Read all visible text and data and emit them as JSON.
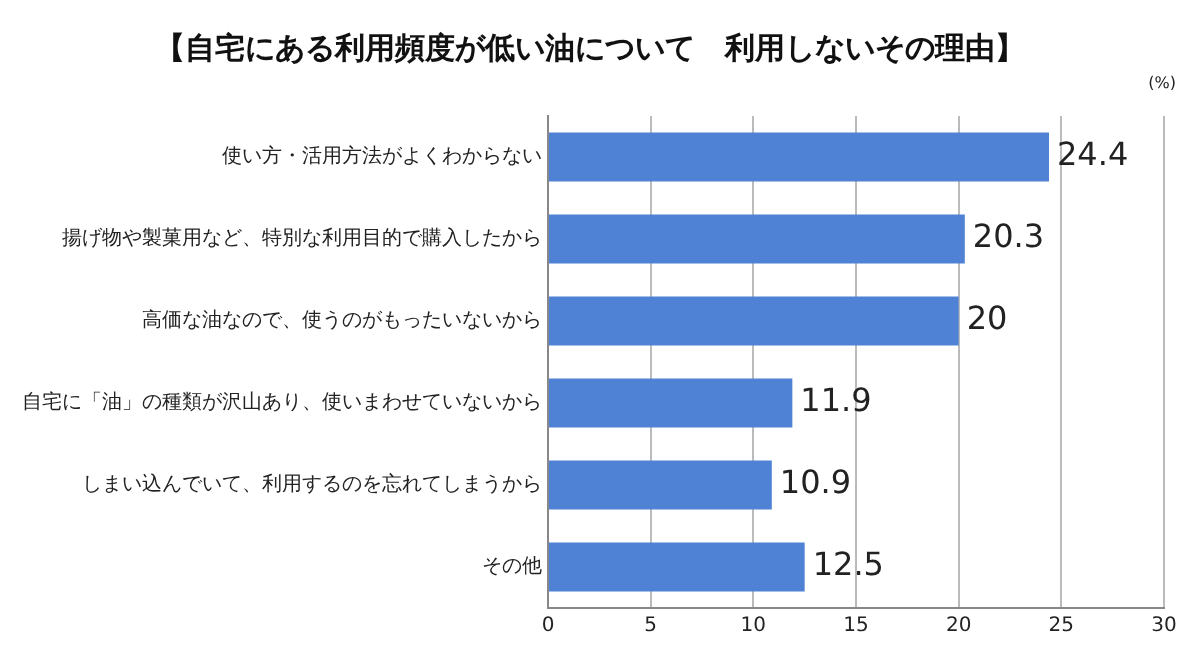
{
  "chart_data": {
    "type": "bar",
    "orientation": "horizontal",
    "title": "【自宅にある利用頻度が低い油について　利用しないその理由】",
    "annotations": [
      "(%)"
    ],
    "categories": [
      "使い方・活用方法がよくわからない",
      "揚げ物や製菓用など、特別な利用目的で購入したから",
      "高価な油なので、使うのがもったいないから",
      "自宅に「油」の種類が沢山あり、使いまわせていないから",
      "しまい込んでいて、利用するのを忘れてしまうから",
      "その他"
    ],
    "values": [
      24.4,
      20.3,
      20,
      11.9,
      10.9,
      12.5
    ],
    "color": "#4f81d5",
    "xlim": [
      0,
      30
    ],
    "xticks": [
      0,
      5,
      10,
      15,
      20,
      25,
      30
    ],
    "grid": "x",
    "data_labels": true,
    "legend": false
  }
}
